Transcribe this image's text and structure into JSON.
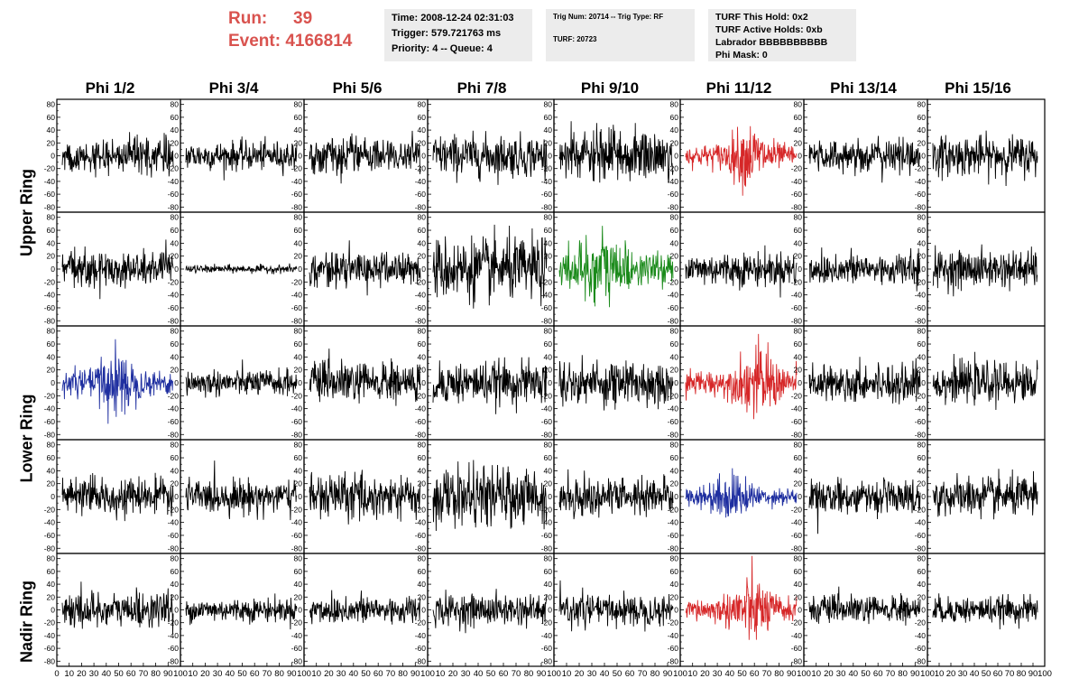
{
  "header": {
    "run_label": "Run:",
    "run_value": "39",
    "event_label": "Event:",
    "event_value": "4166814",
    "accent_color": "#d9534f",
    "box1": [
      "Time: 2008-12-24 02:31:03",
      "Trigger: 579.721763 ms",
      "Priority: 4 -- Queue: 4"
    ],
    "box2": [
      "Trig Num: 20714 -- Trig Type: RF",
      "TURF: 20723"
    ],
    "box3": [
      "TURF This Hold: 0x2",
      "TURF Active Holds: 0xb",
      "Labrador BBBBBBBBBB",
      "Phi Mask: 0"
    ]
  },
  "chart_data": {
    "type": "line",
    "columns": [
      "Phi 1/2",
      "Phi 3/4",
      "Phi 5/6",
      "Phi 7/8",
      "Phi 9/10",
      "Phi 11/12",
      "Phi 13/14",
      "Phi 15/16"
    ],
    "ring_labels": [
      "Upper Ring",
      "Lower Ring",
      "Nadir Ring"
    ],
    "xlim": [
      0,
      100
    ],
    "ylim": [
      -88,
      88
    ],
    "x_ticks": [
      0,
      10,
      20,
      30,
      40,
      50,
      60,
      70,
      80,
      90,
      100
    ],
    "y_ticks": [
      80,
      60,
      40,
      20,
      0,
      -20,
      -40,
      -60,
      -80
    ],
    "colors": {
      "normal": "#000000",
      "hpol_trigger": "#d62728",
      "vpol_trigger": "#1f2fa0",
      "highlight": "#1a8a1a"
    },
    "panels": [
      [
        {
          "amp": 14,
          "color": "normal"
        },
        {
          "amp": 11,
          "color": "normal"
        },
        {
          "amp": 13,
          "color": "normal"
        },
        {
          "amp": 16,
          "color": "normal"
        },
        {
          "amp": 20,
          "color": "normal"
        },
        {
          "amp": 14,
          "color": "hpol_trigger"
        },
        {
          "amp": 13,
          "color": "normal"
        },
        {
          "amp": 15,
          "color": "normal"
        }
      ],
      [
        {
          "amp": 14,
          "color": "normal"
        },
        {
          "amp": 3,
          "color": "normal"
        },
        {
          "amp": 13,
          "color": "normal"
        },
        {
          "amp": 24,
          "color": "normal"
        },
        {
          "amp": 20,
          "color": "highlight"
        },
        {
          "amp": 13,
          "color": "normal"
        },
        {
          "amp": 13,
          "color": "normal"
        },
        {
          "amp": 14,
          "color": "normal"
        }
      ],
      [
        {
          "amp": 15,
          "color": "vpol_trigger"
        },
        {
          "amp": 10,
          "color": "normal"
        },
        {
          "amp": 16,
          "color": "normal"
        },
        {
          "amp": 16,
          "color": "normal"
        },
        {
          "amp": 18,
          "color": "normal"
        },
        {
          "amp": 16,
          "color": "hpol_trigger"
        },
        {
          "amp": 14,
          "color": "normal"
        },
        {
          "amp": 15,
          "color": "normal"
        }
      ],
      [
        {
          "amp": 13,
          "color": "normal"
        },
        {
          "amp": 13,
          "color": "normal"
        },
        {
          "amp": 17,
          "color": "normal"
        },
        {
          "amp": 22,
          "color": "normal"
        },
        {
          "amp": 15,
          "color": "normal"
        },
        {
          "amp": 11,
          "color": "vpol_trigger"
        },
        {
          "amp": 12,
          "color": "normal"
        },
        {
          "amp": 15,
          "color": "normal"
        }
      ],
      [
        {
          "amp": 14,
          "color": "normal"
        },
        {
          "amp": 9,
          "color": "normal"
        },
        {
          "amp": 12,
          "color": "normal"
        },
        {
          "amp": 12,
          "color": "normal"
        },
        {
          "amp": 12,
          "color": "normal"
        },
        {
          "amp": 15,
          "color": "hpol_trigger"
        },
        {
          "amp": 11,
          "color": "normal"
        },
        {
          "amp": 10,
          "color": "normal"
        }
      ]
    ]
  }
}
